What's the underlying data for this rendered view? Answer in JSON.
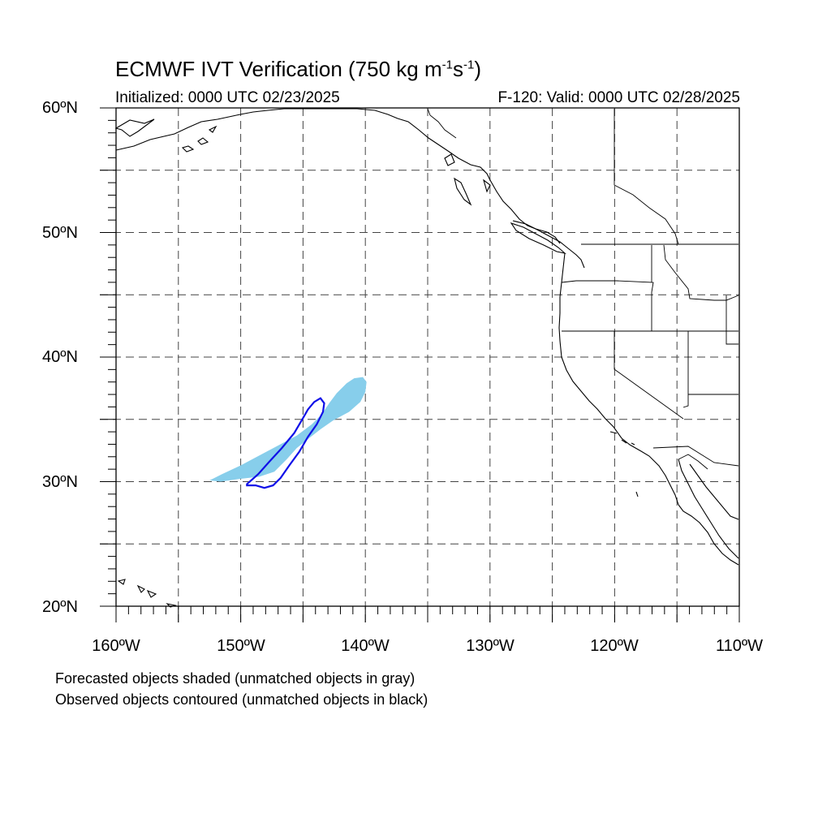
{
  "title": {
    "main": "ECMWF IVT Verification (750 kg m",
    "exp1": "-1",
    "mid": "s",
    "exp2": "-1",
    "close": ")"
  },
  "subtitle_left": "Initialized: 0000 UTC 02/23/2025",
  "subtitle_right": "F-120: Valid: 0000 UTC 02/28/2025",
  "axes": {
    "lat_labels": [
      "60ºN",
      "50ºN",
      "40ºN",
      "30ºN",
      "20ºN"
    ],
    "lon_labels": [
      "160ºW",
      "150ºW",
      "140ºW",
      "130ºW",
      "120ºW",
      "110ºW"
    ],
    "lat_range": [
      20,
      60
    ],
    "lon_range": [
      -160,
      -110
    ]
  },
  "notes": [
    "Forecasted objects shaded (unmatched objects in gray)",
    "Observed objects contoured (unmatched objects in black)"
  ],
  "colors": {
    "forecast_fill": "#87ceeb",
    "observed_contour": "#1010e8",
    "grid": "#444444"
  },
  "objects": {
    "forecast_shaded": {
      "status": "matched",
      "outline": [
        [
          -152.5,
          30.1
        ],
        [
          -151.5,
          30.6
        ],
        [
          -150,
          31.3
        ],
        [
          -148.5,
          32.1
        ],
        [
          -147,
          32.9
        ],
        [
          -145.5,
          33.7
        ],
        [
          -144.3,
          34.6
        ],
        [
          -143.5,
          35.4
        ],
        [
          -142.9,
          36.3
        ],
        [
          -142.3,
          37.1
        ],
        [
          -141.5,
          37.9
        ],
        [
          -140.9,
          38.3
        ],
        [
          -140.2,
          38.4
        ],
        [
          -139.9,
          38.0
        ],
        [
          -140.0,
          37.2
        ],
        [
          -140.4,
          36.4
        ],
        [
          -141.3,
          35.6
        ],
        [
          -142.6,
          34.9
        ],
        [
          -143.6,
          34.2
        ],
        [
          -144.5,
          33.5
        ],
        [
          -145.5,
          32.7
        ],
        [
          -146.3,
          31.8
        ],
        [
          -147.3,
          30.8
        ],
        [
          -148.5,
          30.4
        ],
        [
          -150.2,
          30.2
        ],
        [
          -151.6,
          30.0
        ]
      ]
    },
    "observed_contour": {
      "status": "matched",
      "outline": [
        [
          -149.5,
          29.8
        ],
        [
          -148.6,
          30.6
        ],
        [
          -147.7,
          31.6
        ],
        [
          -146.7,
          32.7
        ],
        [
          -145.7,
          33.9
        ],
        [
          -145,
          35.1
        ],
        [
          -144.6,
          35.8
        ],
        [
          -144.1,
          36.4
        ],
        [
          -143.6,
          36.7
        ],
        [
          -143.3,
          36.3
        ],
        [
          -143.4,
          35.6
        ],
        [
          -143.9,
          34.6
        ],
        [
          -144.6,
          33.6
        ],
        [
          -145.3,
          32.4
        ],
        [
          -146.1,
          31.3
        ],
        [
          -146.8,
          30.3
        ],
        [
          -147.4,
          29.7
        ],
        [
          -148.1,
          29.5
        ],
        [
          -148.8,
          29.7
        ],
        [
          -149.5,
          29.7
        ]
      ]
    }
  }
}
